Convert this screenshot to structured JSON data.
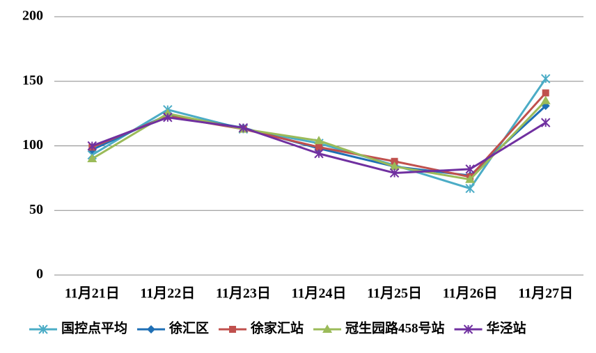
{
  "chart_data": {
    "type": "line",
    "categories": [
      "11月21日",
      "11月22日",
      "11月23日",
      "11月24日",
      "11月25日",
      "11月26日",
      "11月27日"
    ],
    "series": [
      {
        "name": "国控点平均",
        "color": "#4bacc6",
        "marker": "star",
        "values": [
          93,
          128,
          113,
          102,
          85,
          67,
          152
        ]
      },
      {
        "name": "徐汇区",
        "color": "#1f6fb5",
        "marker": "diamond",
        "values": [
          97,
          124,
          114,
          98,
          84,
          77,
          131
        ]
      },
      {
        "name": "徐家汇站",
        "color": "#c0504d",
        "marker": "square",
        "values": [
          99,
          123,
          113,
          99,
          88,
          76,
          141
        ]
      },
      {
        "name": "冠生园路458号站",
        "color": "#9bbb59",
        "marker": "triangle",
        "values": [
          90,
          125,
          113,
          104,
          84,
          74,
          135
        ]
      },
      {
        "name": "华泾站",
        "color": "#7030a0",
        "marker": "star",
        "values": [
          100,
          122,
          114,
          94,
          79,
          82,
          118
        ]
      }
    ],
    "ylim": [
      0,
      200
    ],
    "yticks": [
      0,
      50,
      100,
      150,
      200
    ],
    "grid": true,
    "legend": "bottom"
  }
}
